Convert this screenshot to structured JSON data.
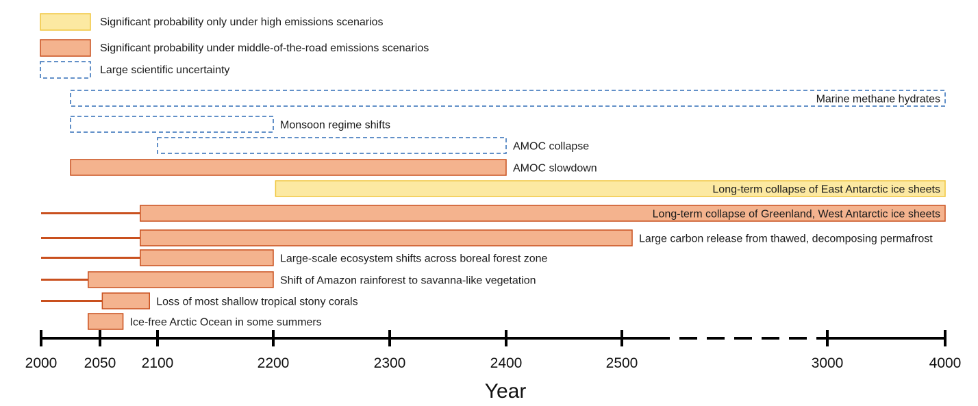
{
  "chart_data": {
    "type": "timeline",
    "xlabel": "Year",
    "x_ticks": [
      "2000",
      "2050",
      "2100",
      "2200",
      "2300",
      "2400",
      "2500",
      "3000",
      "4000"
    ],
    "x_axis_note": "broken scale: dashed segment between 2500 and 3000",
    "legend": [
      {
        "category": "high",
        "label": "Significant probability only under high emissions scenarios"
      },
      {
        "category": "middle",
        "label": "Significant probability under middle-of-the-road emissions scenarios"
      },
      {
        "category": "uncertain",
        "label": "Large scientific uncertainty"
      }
    ],
    "colors": {
      "high_fill": "#fce9a2",
      "high_stroke": "#f0c63f",
      "middle_fill": "#f4b38e",
      "middle_stroke": "#c9501e",
      "uncertain_stroke": "#2e6bb5",
      "axis": "#000000",
      "lead_line": "#c9501e"
    },
    "events": [
      {
        "label": "Marine methane hydrates",
        "category": "uncertain",
        "start": 2025,
        "end": 4000,
        "label_position": "inside"
      },
      {
        "label": "Monsoon regime shifts",
        "category": "uncertain",
        "start": 2025,
        "end": 2200,
        "label_position": "after"
      },
      {
        "label": "AMOC collapse",
        "category": "uncertain",
        "start": 2100,
        "end": 2400,
        "label_position": "after"
      },
      {
        "label": "AMOC slowdown",
        "category": "middle",
        "start": 2025,
        "end": 2400,
        "label_position": "after"
      },
      {
        "label": "Long-term collapse of East Antarctic ice sheets",
        "category": "high",
        "start": 2202,
        "end": 4000,
        "label_position": "inside"
      },
      {
        "label": "Long-term collapse of Greenland, West Antarctic ice sheets",
        "category": "middle",
        "start": 2085,
        "end": 4000,
        "lead_from": 2000,
        "label_position": "inside"
      },
      {
        "label": "Large carbon release from thawed, decomposing permafrost",
        "category": "middle",
        "start": 2085,
        "end": 2525,
        "lead_from": 2000,
        "label_position": "after"
      },
      {
        "label": "Large-scale ecosystem shifts across boreal forest zone",
        "category": "middle",
        "start": 2085,
        "end": 2200,
        "lead_from": 2000,
        "label_position": "after"
      },
      {
        "label": "Shift of Amazon rainforest to savanna-like vegetation",
        "category": "middle",
        "start": 2040,
        "end": 2200,
        "lead_from": 2000,
        "label_position": "after"
      },
      {
        "label": "Loss of most shallow tropical stony corals",
        "category": "middle",
        "start": 2052,
        "end": 2093,
        "lead_from": 2000,
        "label_position": "after"
      },
      {
        "label": "Ice-free Arctic Ocean in some summers",
        "category": "middle",
        "start": 2040,
        "end": 2070,
        "label_position": "after"
      }
    ]
  }
}
